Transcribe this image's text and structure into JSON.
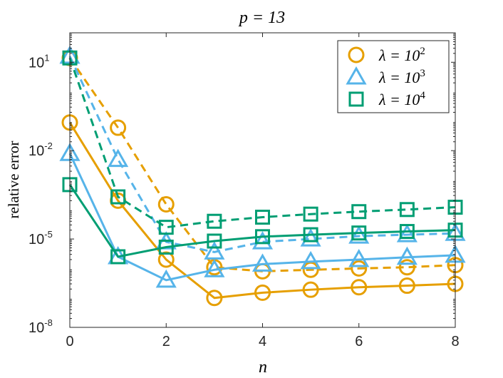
{
  "chart_data": {
    "type": "line",
    "title": "p = 13",
    "xlabel": "n",
    "ylabel": "relative error",
    "x": [
      0,
      1,
      2,
      3,
      4,
      5,
      6,
      7,
      8
    ],
    "xlim": [
      0,
      8
    ],
    "ylim": [
      1e-08,
      100
    ],
    "yscale": "log",
    "xticks": [
      "0",
      "2",
      "4",
      "6",
      "8"
    ],
    "yticks": [
      {
        "base": "10",
        "exp": "-8",
        "value": 1e-08
      },
      {
        "base": "10",
        "exp": "-5",
        "value": 1e-05
      },
      {
        "base": "10",
        "exp": "-2",
        "value": 0.01
      },
      {
        "base": "10",
        "exp": "1",
        "value": 10
      }
    ],
    "grid": false,
    "legend_position": "top-right",
    "series": [
      {
        "name": "λ = 10²",
        "lambda_exp": "2",
        "color": "#E69F00",
        "marker": "circle",
        "style": "solid",
        "values": [
          0.09,
          0.0002,
          2e-06,
          1e-07,
          1.5e-07,
          1.9e-07,
          2.3e-07,
          2.6e-07,
          3e-07
        ]
      },
      {
        "name": "λ = 10²",
        "lambda_exp": "2",
        "color": "#E69F00",
        "marker": "circle",
        "style": "dashed",
        "values": [
          14,
          0.06,
          0.00015,
          1.1e-06,
          8e-07,
          9e-07,
          1e-06,
          1.1e-06,
          1.3e-06
        ]
      },
      {
        "name": "λ = 10³",
        "lambda_exp": "3",
        "color": "#56B4E9",
        "marker": "triangle",
        "style": "solid",
        "values": [
          0.008,
          2.5e-06,
          4e-07,
          9e-07,
          1.4e-06,
          1.7e-06,
          2e-06,
          2.4e-06,
          2.8e-06
        ]
      },
      {
        "name": "λ = 10³",
        "lambda_exp": "3",
        "color": "#56B4E9",
        "marker": "triangle",
        "style": "dashed",
        "values": [
          16,
          0.005,
          8e-06,
          3.6e-06,
          8e-06,
          1e-05,
          1.25e-05,
          1.4e-05,
          1.55e-05
        ]
      },
      {
        "name": "λ = 10⁴",
        "lambda_exp": "4",
        "color": "#009E73",
        "marker": "square",
        "style": "solid",
        "values": [
          0.0007,
          2.5e-06,
          5.3e-06,
          8.5e-06,
          1.2e-05,
          1.4e-05,
          1.6e-05,
          1.8e-05,
          2e-05
        ]
      },
      {
        "name": "λ = 10⁴",
        "lambda_exp": "4",
        "color": "#009E73",
        "marker": "square",
        "style": "dashed",
        "values": [
          14,
          0.00027,
          2.5e-05,
          4e-05,
          5.5e-05,
          7e-05,
          8.5e-05,
          0.0001,
          0.00012
        ]
      }
    ],
    "legend": [
      {
        "label_prefix": "λ = 10",
        "exp": "2",
        "color": "#E69F00",
        "marker": "circle"
      },
      {
        "label_prefix": "λ = 10",
        "exp": "3",
        "color": "#56B4E9",
        "marker": "triangle"
      },
      {
        "label_prefix": "λ = 10",
        "exp": "4",
        "color": "#009E73",
        "marker": "square"
      }
    ]
  }
}
